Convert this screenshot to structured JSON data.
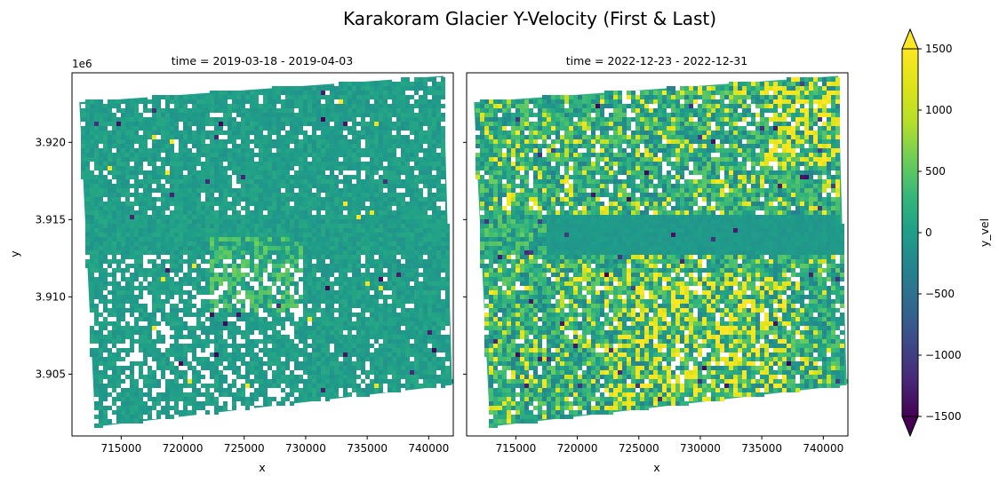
{
  "chart_data": {
    "type": "heatmap",
    "title": "Karakoram Glacier Y-Velocity (First & Last)",
    "colormap": "viridis",
    "panels": [
      {
        "subtitle": "time = 2019-03-18 - 2019-04-03",
        "xlabel": "x",
        "ylabel": "y",
        "x_ticks": [
          715000,
          720000,
          725000,
          730000,
          735000,
          740000
        ],
        "x_tick_labels": [
          "715000",
          "720000",
          "725000",
          "730000",
          "735000",
          "740000"
        ],
        "y_ticks": [
          3905000,
          3910000,
          3915000,
          3920000
        ],
        "y_tick_labels": [
          "3.905",
          "3.910",
          "3.915",
          "3.920"
        ],
        "y_offset_label": "1e6",
        "xlim": [
          711000,
          742000
        ],
        "ylim": [
          3901000,
          3924500
        ],
        "data_footprint": [
          [
            711600,
            3922600
          ],
          [
            741200,
            3924300
          ],
          [
            741900,
            3904300
          ],
          [
            712900,
            3901600
          ]
        ],
        "typical_velocity": 0,
        "no_data_fraction": "moderate"
      },
      {
        "subtitle": "time = 2022-12-23 - 2022-12-31",
        "xlabel": "x",
        "ylabel": "",
        "x_ticks": [
          715000,
          720000,
          725000,
          730000,
          735000,
          740000
        ],
        "x_tick_labels": [
          "715000",
          "720000",
          "725000",
          "730000",
          "735000",
          "740000"
        ],
        "y_ticks": [
          3905000,
          3910000,
          3915000,
          3920000
        ],
        "y_tick_labels": [],
        "xlim": [
          711000,
          742000
        ],
        "ylim": [
          3901000,
          3924500
        ],
        "data_footprint": [
          [
            711600,
            3922600
          ],
          [
            741200,
            3924300
          ],
          [
            741900,
            3904300
          ],
          [
            712900,
            3901600
          ]
        ],
        "typical_velocity": 200,
        "no_data_fraction": "low"
      }
    ],
    "colorbar": {
      "label": "y_vel",
      "vmin": -1500,
      "vmax": 1500,
      "ticks": [
        -1500,
        -1000,
        -500,
        0,
        500,
        1000,
        1500
      ],
      "tick_labels": [
        "−1500",
        "−1000",
        "−500",
        "0",
        "500",
        "1000",
        "1500"
      ],
      "extend": "both"
    }
  }
}
